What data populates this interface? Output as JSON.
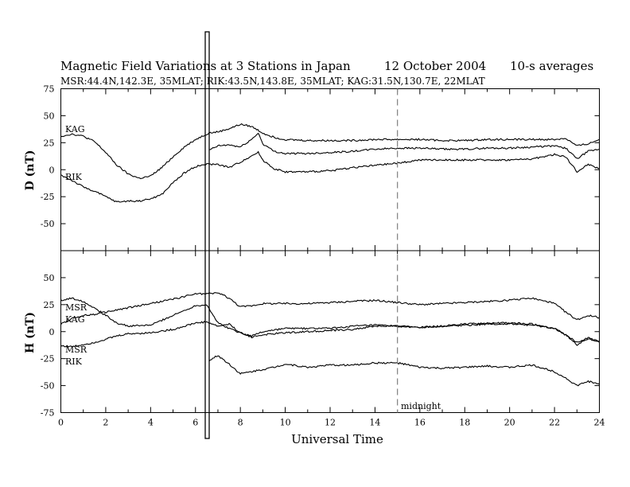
{
  "chart_data": [
    {
      "type": "line",
      "title": "Magnetic Field Variations at 3 Stations in Japan",
      "date": "12  October 2004",
      "averaging": "10-s averages",
      "subtitle": "MSR:44.4N,142.3E, 35MLAT;   RIK:43.5N,143.8E, 35MLAT;   KAG:31.5N,130.7E, 22MLAT",
      "ylabel": "D (nT)",
      "ylim": [
        -75,
        75
      ],
      "yticks": [
        "75",
        "50",
        "25",
        "0",
        "-25",
        "-50"
      ],
      "xlim": [
        0,
        24
      ],
      "series": [
        {
          "name": "KAG",
          "x": [
            0,
            0.5,
            1,
            1.5,
            2,
            2.5,
            3,
            3.5,
            4,
            4.5,
            5,
            5.5,
            6,
            6.5,
            6.6,
            7,
            7.5,
            8,
            8.5,
            9,
            9.5,
            10,
            11,
            12,
            13,
            14,
            15,
            16,
            17,
            18,
            19,
            20,
            21,
            22,
            22.5,
            23,
            23.5,
            24
          ],
          "y": [
            31,
            33,
            31,
            26,
            16,
            4,
            -4,
            -8,
            -6,
            2,
            12,
            21,
            28,
            33,
            34,
            35,
            38,
            42,
            40,
            34,
            30,
            28,
            27,
            27,
            27,
            28,
            28,
            28,
            27,
            27,
            28,
            28,
            28,
            28,
            29,
            22,
            24,
            28
          ]
        },
        {
          "name": "",
          "x": [
            6.6,
            7,
            7.5,
            8,
            8.5,
            8.8,
            9,
            9.5,
            10,
            11,
            12,
            13,
            14,
            15,
            16,
            17,
            18,
            19,
            20,
            21,
            22,
            22.5,
            23,
            23.5,
            24
          ],
          "y": [
            18,
            22,
            23,
            21,
            28,
            34,
            24,
            17,
            15,
            15,
            16,
            17,
            19,
            20,
            20,
            19,
            19,
            20,
            20,
            21,
            22,
            20,
            10,
            17,
            19
          ]
        },
        {
          "name": "RIK",
          "x": [
            0,
            0.5,
            1,
            1.5,
            2,
            2.5,
            3,
            3.5,
            4,
            4.5,
            5,
            5.5,
            6,
            6.5,
            7,
            7.5,
            8,
            8.5,
            8.8,
            9,
            9.5,
            10,
            11,
            12,
            13,
            14,
            15,
            16,
            17,
            18,
            19,
            20,
            21,
            22,
            22.5,
            23,
            23.5,
            24
          ],
          "y": [
            -5,
            -10,
            -16,
            -20,
            -25,
            -30,
            -29,
            -29,
            -27,
            -23,
            -12,
            -3,
            3,
            5,
            5,
            2,
            7,
            13,
            16,
            9,
            1,
            -2,
            -2,
            -1,
            2,
            4,
            6,
            9,
            9,
            9,
            9,
            9,
            10,
            14,
            12,
            -2,
            5,
            1
          ]
        }
      ]
    },
    {
      "type": "line",
      "ylabel": "H (nT)",
      "xlabel": "Universal Time",
      "ylim": [
        -75,
        75
      ],
      "yticks": [
        "50",
        "25",
        "0",
        "-25",
        "-50",
        "-75"
      ],
      "xlim": [
        0,
        24
      ],
      "xticks": [
        "0",
        "2",
        "4",
        "6",
        "8",
        "10",
        "12",
        "14",
        "16",
        "18",
        "20",
        "22",
        "24"
      ],
      "midline": {
        "x": 15,
        "label": "midnight"
      },
      "series_labels": [
        "MSR",
        "KAG",
        "MSR",
        "RIK"
      ],
      "series": [
        {
          "name": "MSR",
          "x": [
            0,
            0.5,
            1,
            1.5,
            2,
            2.5,
            3,
            4,
            5,
            6,
            6.5,
            7,
            7.5,
            8,
            8.5,
            9,
            10,
            11,
            12,
            13,
            14,
            15,
            16,
            17,
            18,
            19,
            20,
            21,
            22,
            22.5,
            23,
            23.5,
            24
          ],
          "y": [
            7,
            12,
            15,
            16,
            18,
            20,
            22,
            26,
            30,
            35,
            35,
            36,
            31,
            23,
            24,
            26,
            26,
            26,
            27,
            28,
            29,
            27,
            25,
            26,
            27,
            28,
            29,
            31,
            26,
            18,
            11,
            15,
            13
          ]
        },
        {
          "name": "KAG",
          "x": [
            0,
            0.5,
            1,
            1.5,
            2,
            2.5,
            3,
            4,
            5,
            6,
            6.5,
            7,
            7.5,
            8,
            8.5,
            9,
            10,
            11,
            12,
            13,
            14,
            15,
            16,
            17,
            18,
            19,
            20,
            21,
            22,
            22.5,
            23,
            23.5,
            24
          ],
          "y": [
            29,
            31,
            28,
            22,
            15,
            8,
            5,
            6,
            15,
            24,
            25,
            8,
            3,
            -1,
            -4,
            0,
            3,
            3,
            3,
            5,
            6,
            5,
            4,
            5,
            7,
            8,
            8,
            7,
            3,
            -3,
            -10,
            -6,
            -9
          ]
        },
        {
          "name": "MSR",
          "x": [
            0,
            0.5,
            1,
            1.5,
            2,
            2.5,
            3,
            4,
            5,
            6,
            6.5,
            7,
            7.5,
            8,
            8.5,
            9,
            10,
            11,
            12,
            13,
            14,
            15,
            16,
            17,
            18,
            19,
            20,
            21,
            22,
            22.5,
            23,
            23.5,
            24
          ],
          "y": [
            -13,
            -14,
            -12,
            -10,
            -7,
            -4,
            -2,
            -1,
            2,
            8,
            9,
            5,
            7,
            -1,
            -5,
            -3,
            -1,
            0,
            1,
            2,
            5,
            5,
            4,
            5,
            6,
            7,
            7,
            6,
            3,
            -3,
            -12,
            -7,
            -10
          ]
        },
        {
          "name": "RIK",
          "x": [
            6.6,
            7,
            7.5,
            8,
            8.5,
            9,
            9.5,
            10,
            11,
            12,
            13,
            14,
            15,
            16,
            17,
            18,
            19,
            20,
            21,
            22,
            22.5,
            23,
            23.5,
            24
          ],
          "y": [
            -27,
            -22,
            -30,
            -39,
            -37,
            -35,
            -33,
            -30,
            -33,
            -31,
            -31,
            -29,
            -29,
            -33,
            -34,
            -33,
            -32,
            -33,
            -31,
            -37,
            -43,
            -50,
            -46,
            -49
          ]
        }
      ]
    }
  ]
}
